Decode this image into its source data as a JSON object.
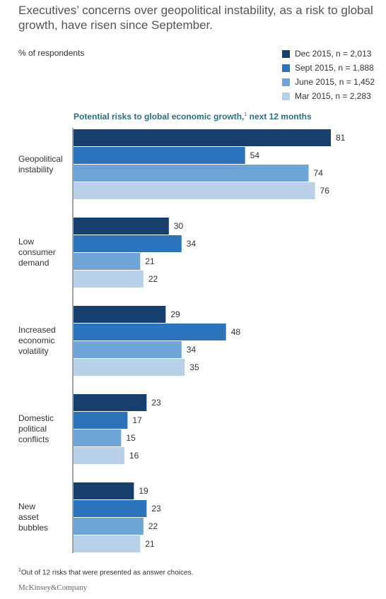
{
  "header": {
    "title": "Executives’ concerns over geopolitical instability, as a risk to global growth, have risen since September.",
    "unit_label": "% of respondents"
  },
  "chart_data": {
    "type": "bar",
    "orientation": "horizontal",
    "title": "Potential risks to global economic growth,",
    "title_footnote_marker": "1",
    "title_suffix": " next 12 months",
    "categories": [
      [
        "Geopolitical",
        "instability"
      ],
      [
        "Low",
        "consumer",
        "demand"
      ],
      [
        "Increased",
        "economic",
        "volatility"
      ],
      [
        "Domestic",
        "political",
        "conflicts"
      ],
      [
        "New",
        "asset",
        "bubbles"
      ]
    ],
    "series": [
      {
        "name": "Dec 2015, n = 2,013",
        "color": "#173f6e",
        "values": [
          81,
          30,
          29,
          23,
          19
        ]
      },
      {
        "name": "Sept 2015, n = 1,888",
        "color": "#2b73bb",
        "values": [
          54,
          34,
          48,
          17,
          23
        ]
      },
      {
        "name": "June 2015, n = 1,452",
        "color": "#6fa5d6",
        "values": [
          74,
          21,
          34,
          15,
          22
        ]
      },
      {
        "name": "Mar 2015, n = 2,283",
        "color": "#b8d0e8",
        "values": [
          76,
          22,
          35,
          16,
          21
        ]
      }
    ],
    "xlim": [
      0,
      81
    ],
    "data_labels": true,
    "legend_position": "top-right",
    "grid": false
  },
  "footer": {
    "footnote_marker": "1",
    "footnote": "Out of 12 risks that were presented as answer choices.",
    "brand": "McKinsey&Company"
  }
}
